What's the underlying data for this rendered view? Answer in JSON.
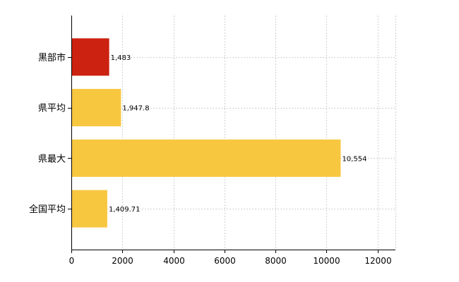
{
  "chart_data": {
    "type": "bar",
    "orientation": "horizontal",
    "categories": [
      "黒部市",
      "県平均",
      "県最大",
      "全国平均"
    ],
    "values": [
      1483,
      1947.8,
      10554,
      1409.71
    ],
    "value_labels": [
      "1,483",
      "1,947.8",
      "10,554",
      "1,409.71"
    ],
    "colors": [
      "#cc2211",
      "#f7c740",
      "#f7c740",
      "#f7c740"
    ],
    "xlim": [
      0,
      12700
    ],
    "x_ticks": [
      0,
      2000,
      4000,
      6000,
      8000,
      10000,
      12000
    ],
    "x_tick_labels": [
      "0",
      "2000",
      "4000",
      "6000",
      "8000",
      "10000",
      "12000"
    ],
    "grid": true,
    "legend": "none"
  }
}
